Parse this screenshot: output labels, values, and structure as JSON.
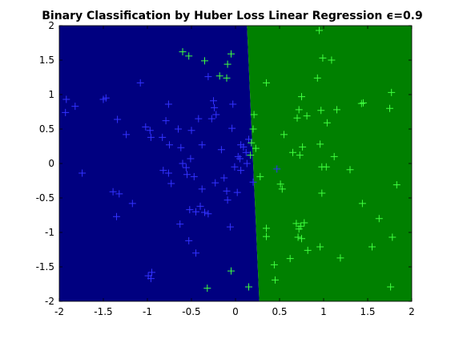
{
  "chart_data": {
    "type": "scatter",
    "title": "Binary Classification by Huber Loss Linear Regression ϵ=0.9",
    "xlim": [
      -2,
      2
    ],
    "ylim": [
      -2,
      2
    ],
    "xticks": [
      -2,
      -1.5,
      -1,
      -0.5,
      0,
      0.5,
      1,
      1.5,
      2
    ],
    "yticks": [
      -2,
      -1.5,
      -1,
      -0.5,
      0,
      0.5,
      1,
      1.5,
      2
    ],
    "decision_boundary": {
      "x": [
        0.27,
        0.13
      ],
      "y": [
        -2,
        2
      ]
    },
    "regions": [
      {
        "color": "#000080"
      },
      {
        "color": "#008000"
      }
    ],
    "series": [
      {
        "color": "#3333ff",
        "x": [
          -1.92,
          -1.93,
          -1.82,
          -1.74,
          -1.5,
          -1.47,
          -1.34,
          -1.39,
          -1.32,
          -1.35,
          -1.24,
          -1.17,
          -1.08,
          -1.02,
          -0.96,
          -0.97,
          -0.83,
          -0.76,
          -0.79,
          -0.75,
          -0.82,
          -0.76,
          -0.73,
          -0.63,
          -0.65,
          -0.62,
          -0.6,
          -0.56,
          -0.55,
          -0.51,
          -0.47,
          -0.5,
          -0.53,
          -0.52,
          -0.45,
          -0.42,
          -0.38,
          -0.4,
          -0.35,
          -0.31,
          -0.38,
          -0.31,
          -0.27,
          -0.25,
          -0.24,
          -0.22,
          -0.23,
          -0.16,
          -0.13,
          -0.1,
          -0.09,
          -0.06,
          -0.03,
          -0.04,
          -0.01,
          0.02,
          0.03,
          0.06,
          0.06,
          0.09,
          0.12,
          0.13,
          0.15,
          -0.45,
          -0.99,
          -0.95,
          -0.96,
          0.05,
          0.2,
          0.47
        ],
        "y": [
          0.93,
          0.74,
          0.83,
          -0.14,
          0.93,
          0.95,
          0.64,
          -0.41,
          -0.44,
          -0.77,
          0.42,
          -0.58,
          1.17,
          0.53,
          0.38,
          0.48,
          0.38,
          0.86,
          0.62,
          0.27,
          -0.1,
          -0.14,
          -0.29,
          -0.88,
          0.5,
          0.23,
          0.0,
          -0.06,
          -0.16,
          0.07,
          -0.19,
          0.48,
          -1.12,
          -0.67,
          -0.7,
          0.65,
          0.27,
          -0.62,
          -0.71,
          -0.73,
          -0.37,
          1.26,
          0.65,
          0.91,
          0.81,
          0.71,
          -0.28,
          0.2,
          -0.21,
          -0.4,
          -0.53,
          -0.92,
          0.86,
          0.51,
          -0.05,
          -0.42,
          0.1,
          0.27,
          -0.1,
          0.24,
          0.16,
          0.0,
          0.35,
          -1.3,
          -1.63,
          -1.58,
          -1.67,
          0.07,
          -0.27,
          -0.08
        ]
      },
      {
        "color": "#40ff40",
        "x": [
          0.95,
          -0.6,
          -0.53,
          -0.35,
          -0.05,
          -0.09,
          -0.18,
          -0.1,
          0.99,
          1.09,
          0.35,
          0.93,
          0.21,
          0.2,
          0.18,
          0.23,
          0.17,
          0.75,
          0.72,
          0.81,
          0.7,
          0.97,
          1.04,
          1.15,
          1.43,
          1.45,
          1.77,
          1.75,
          0.55,
          0.65,
          0.73,
          0.76,
          0.96,
          1.12,
          0.98,
          1.03,
          1.3,
          0.28,
          0.51,
          0.53,
          0.98,
          1.44,
          1.83,
          1.63,
          0.69,
          0.74,
          0.78,
          0.35,
          0.35,
          0.71,
          0.75,
          1.78,
          0.72,
          0.82,
          0.96,
          0.62,
          1.19,
          1.55,
          0.44,
          0.45,
          -0.05,
          -0.32,
          0.15,
          1.76
        ],
        "y": [
          1.93,
          1.62,
          1.56,
          1.49,
          1.59,
          1.44,
          1.27,
          1.24,
          1.53,
          1.5,
          1.17,
          1.24,
          0.71,
          0.5,
          0.3,
          0.22,
          0.12,
          0.97,
          0.78,
          0.69,
          0.66,
          0.77,
          0.59,
          0.78,
          0.87,
          0.88,
          1.03,
          0.8,
          0.42,
          0.16,
          0.12,
          0.24,
          0.28,
          0.1,
          -0.05,
          -0.05,
          -0.09,
          -0.19,
          -0.3,
          -0.37,
          -0.43,
          -0.58,
          -0.31,
          -0.8,
          -0.87,
          -0.91,
          -0.86,
          -0.94,
          -1.06,
          -1.07,
          -1.09,
          -1.07,
          -0.95,
          -1.26,
          -1.21,
          -1.38,
          -1.37,
          -1.21,
          -1.47,
          -1.69,
          -1.56,
          -1.81,
          -1.79,
          -1.79
        ]
      }
    ]
  }
}
